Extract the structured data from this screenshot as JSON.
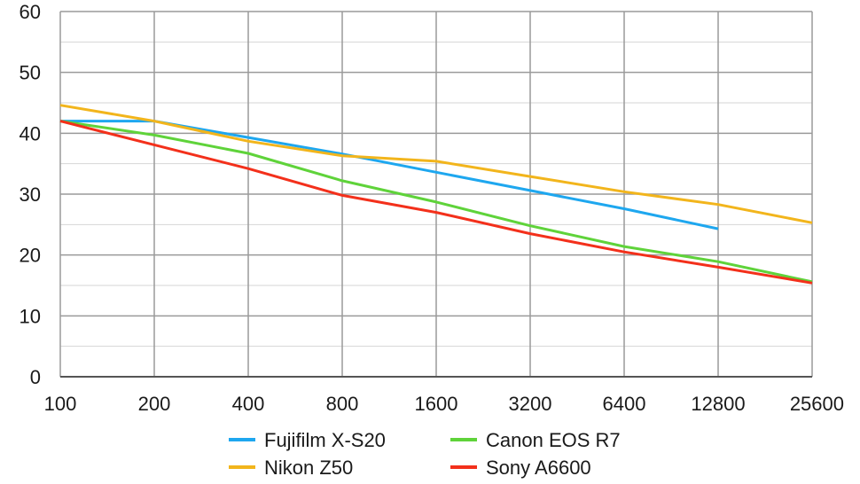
{
  "chart_data": {
    "type": "line",
    "title": "",
    "xlabel": "",
    "ylabel": "",
    "x": [
      "100",
      "200",
      "400",
      "800",
      "1600",
      "3200",
      "6400",
      "12800",
      "25600"
    ],
    "ylim": [
      0,
      60
    ],
    "yticks": [
      "0",
      "10",
      "20",
      "30",
      "40",
      "50",
      "60"
    ],
    "grid": true,
    "legend_position": "bottom",
    "series": [
      {
        "name": "Fujifilm X-S20",
        "color": "#1ea7ef",
        "values": [
          42.0,
          42.0,
          39.3,
          36.6,
          33.6,
          30.6,
          27.6,
          24.3,
          null
        ]
      },
      {
        "name": "Nikon Z50",
        "color": "#f2b51c",
        "values": [
          44.6,
          42.0,
          38.7,
          36.3,
          35.4,
          32.9,
          30.4,
          28.3,
          25.3
        ]
      },
      {
        "name": "Canon EOS R7",
        "color": "#5fd33a",
        "values": [
          42.0,
          39.7,
          36.7,
          32.2,
          28.7,
          24.8,
          21.4,
          18.9,
          15.6
        ]
      },
      {
        "name": "Sony A6600",
        "color": "#f3301b",
        "values": [
          42.0,
          38.1,
          34.2,
          29.8,
          27.0,
          23.5,
          20.5,
          18.0,
          15.4
        ]
      }
    ]
  }
}
